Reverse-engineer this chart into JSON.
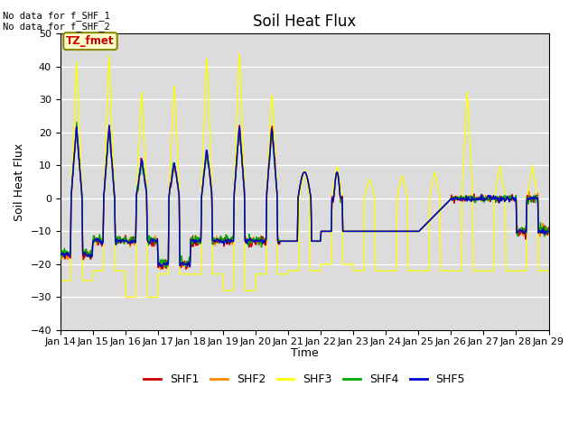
{
  "title": "Soil Heat Flux",
  "ylabel": "Soil Heat Flux",
  "xlabel": "Time",
  "ylim": [
    -40,
    50
  ],
  "yticks": [
    -40,
    -30,
    -20,
    -10,
    0,
    10,
    20,
    30,
    40,
    50
  ],
  "annotation_text": "No data for f_SHF_1\nNo data for f_SHF_2",
  "legend_box_text": "TZ_fmet",
  "legend_entries": [
    "SHF1",
    "SHF2",
    "SHF3",
    "SHF4",
    "SHF5"
  ],
  "colors": {
    "SHF1": "#cc0000",
    "SHF2": "#ff8800",
    "SHF3": "#ffff00",
    "SHF4": "#00aa00",
    "SHF5": "#0000cc"
  },
  "bg_color": "#dcdcdc",
  "grid_color": "#ffffff",
  "xtick_labels": [
    "Jan 14",
    "Jan 15",
    "Jan 16",
    "Jan 17",
    "Jan 18",
    "Jan 19",
    "Jan 20",
    "Jan 21",
    "Jan 22",
    "Jan 23",
    "Jan 24",
    "Jan 25",
    "Jan 26",
    "Jan 27",
    "Jan 28",
    "Jan 29"
  ]
}
